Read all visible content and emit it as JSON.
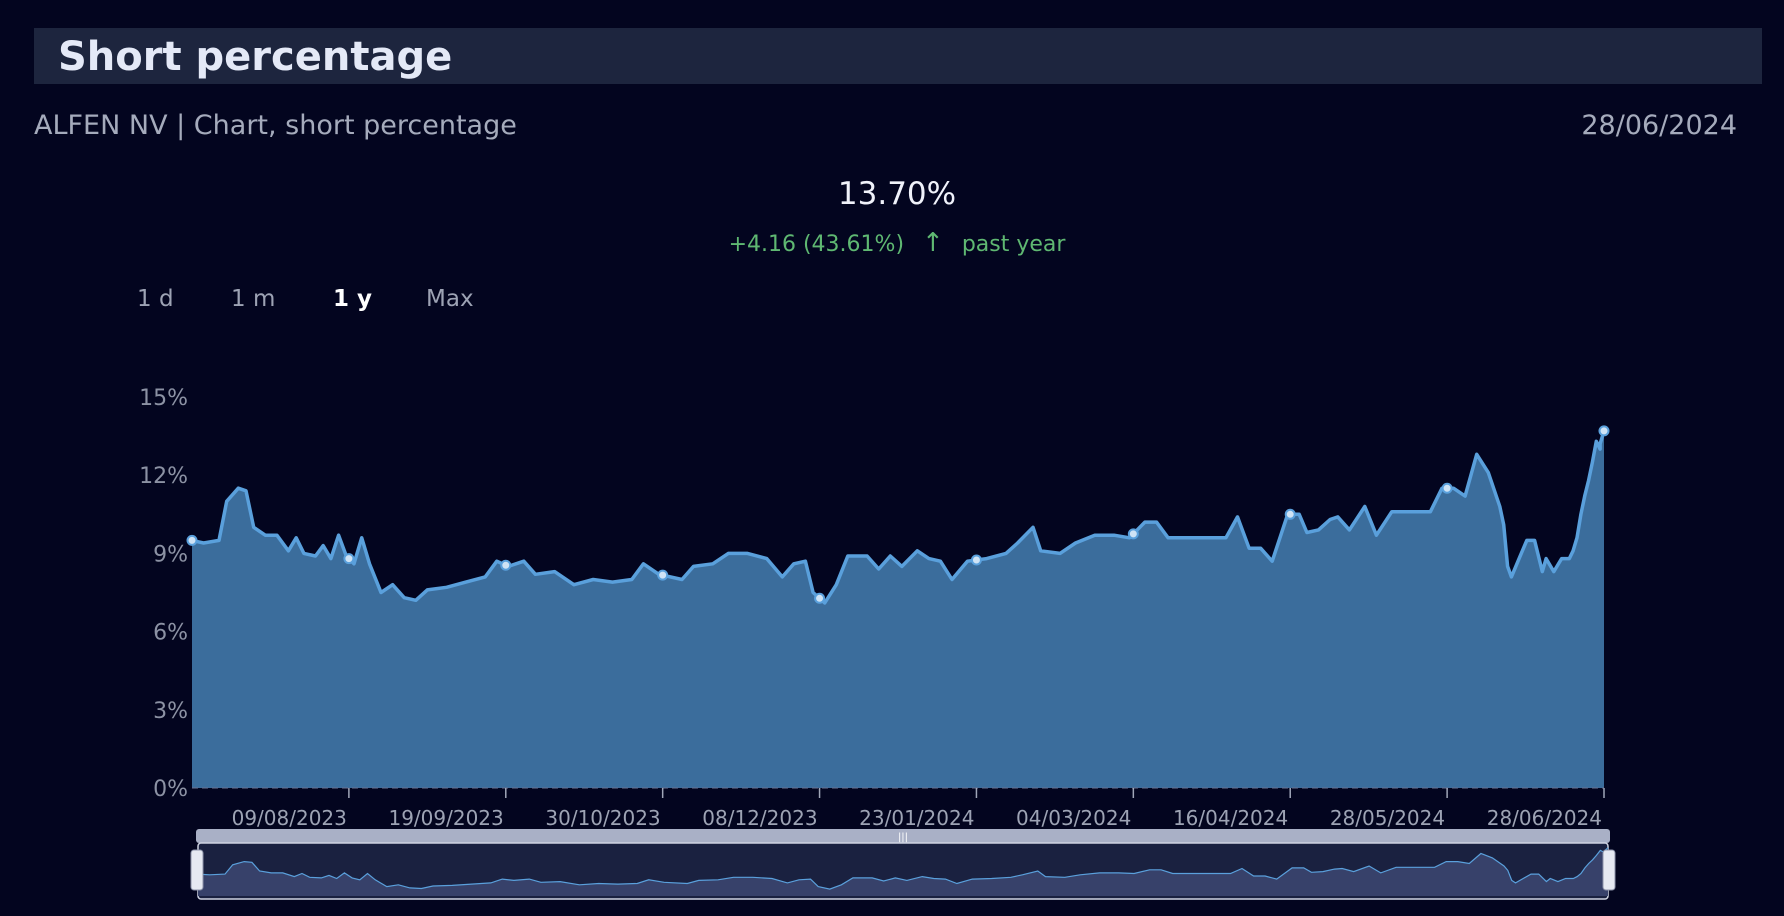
{
  "header": {
    "title": "Short percentage",
    "subtitle": "ALFEN NV | Chart, short percentage",
    "date": "28/06/2024"
  },
  "summary": {
    "value": "13.70%",
    "change": "+4.16 (43.61%)",
    "arrow": "↑",
    "period": "past year",
    "change_color": "#5fb872"
  },
  "range_buttons": [
    "1 d",
    "1 m",
    "1 y",
    "Max"
  ],
  "active_range": "1 y",
  "colors": {
    "line": "#5aa0dc",
    "fill": "#3b6d9c",
    "navigator_fill": "#37416a",
    "background": "#03051f"
  },
  "chart_data": {
    "type": "area",
    "title": "",
    "xlabel": "",
    "ylabel": "",
    "ylim": [
      0,
      15
    ],
    "yticks": [
      "0%",
      "3%",
      "6%",
      "9%",
      "12%",
      "15%"
    ],
    "xticks": [
      "09/08/2023",
      "19/09/2023",
      "30/10/2023",
      "08/12/2023",
      "23/01/2024",
      "04/03/2024",
      "16/04/2024",
      "28/05/2024",
      "28/06/2024"
    ],
    "series": [
      {
        "values": [
          [
            "2023-06-28",
            9.5
          ],
          [
            "2023-07-01",
            9.4
          ],
          [
            "2023-07-05",
            9.5
          ],
          [
            "2023-07-07",
            11.0
          ],
          [
            "2023-07-10",
            11.5
          ],
          [
            "2023-07-12",
            11.4
          ],
          [
            "2023-07-14",
            10.0
          ],
          [
            "2023-07-17",
            9.7
          ],
          [
            "2023-07-20",
            9.7
          ],
          [
            "2023-07-23",
            9.1
          ],
          [
            "2023-07-25",
            9.6
          ],
          [
            "2023-07-27",
            9.0
          ],
          [
            "2023-07-30",
            8.9
          ],
          [
            "2023-08-01",
            9.3
          ],
          [
            "2023-08-03",
            8.8
          ],
          [
            "2023-08-05",
            9.7
          ],
          [
            "2023-08-07",
            8.9
          ],
          [
            "2023-08-09",
            8.6
          ],
          [
            "2023-08-11",
            9.6
          ],
          [
            "2023-08-13",
            8.6
          ],
          [
            "2023-08-16",
            7.5
          ],
          [
            "2023-08-19",
            7.8
          ],
          [
            "2023-08-22",
            7.3
          ],
          [
            "2023-08-25",
            7.2
          ],
          [
            "2023-08-28",
            7.6
          ],
          [
            "2023-09-02",
            7.7
          ],
          [
            "2023-09-07",
            7.9
          ],
          [
            "2023-09-12",
            8.1
          ],
          [
            "2023-09-15",
            8.7
          ],
          [
            "2023-09-18",
            8.5
          ],
          [
            "2023-09-22",
            8.7
          ],
          [
            "2023-09-25",
            8.2
          ],
          [
            "2023-09-30",
            8.3
          ],
          [
            "2023-10-05",
            7.8
          ],
          [
            "2023-10-10",
            8.0
          ],
          [
            "2023-10-15",
            7.9
          ],
          [
            "2023-10-20",
            8.0
          ],
          [
            "2023-10-23",
            8.6
          ],
          [
            "2023-10-27",
            8.2
          ],
          [
            "2023-11-02",
            8.0
          ],
          [
            "2023-11-05",
            8.5
          ],
          [
            "2023-11-10",
            8.6
          ],
          [
            "2023-11-14",
            9.0
          ],
          [
            "2023-11-19",
            9.0
          ],
          [
            "2023-11-24",
            8.8
          ],
          [
            "2023-11-28",
            8.1
          ],
          [
            "2023-12-01",
            8.6
          ],
          [
            "2023-12-04",
            8.7
          ],
          [
            "2023-12-06",
            7.5
          ],
          [
            "2023-12-09",
            7.1
          ],
          [
            "2023-12-12",
            7.8
          ],
          [
            "2023-12-15",
            8.9
          ],
          [
            "2023-12-20",
            8.9
          ],
          [
            "2023-12-23",
            8.4
          ],
          [
            "2023-12-26",
            8.9
          ],
          [
            "2023-12-29",
            8.5
          ],
          [
            "2024-01-02",
            9.1
          ],
          [
            "2024-01-05",
            8.8
          ],
          [
            "2024-01-08",
            8.7
          ],
          [
            "2024-01-11",
            8.0
          ],
          [
            "2024-01-15",
            8.7
          ],
          [
            "2024-01-20",
            8.8
          ],
          [
            "2024-01-25",
            9.0
          ],
          [
            "2024-01-28",
            9.4
          ],
          [
            "2024-02-01",
            10.0
          ],
          [
            "2024-02-03",
            9.1
          ],
          [
            "2024-02-08",
            9.0
          ],
          [
            "2024-02-12",
            9.4
          ],
          [
            "2024-02-17",
            9.7
          ],
          [
            "2024-02-22",
            9.7
          ],
          [
            "2024-02-26",
            9.6
          ],
          [
            "2024-03-01",
            10.2
          ],
          [
            "2024-03-04",
            10.2
          ],
          [
            "2024-03-07",
            9.6
          ],
          [
            "2024-03-12",
            9.6
          ],
          [
            "2024-03-17",
            9.6
          ],
          [
            "2024-03-22",
            9.6
          ],
          [
            "2024-03-25",
            10.4
          ],
          [
            "2024-03-28",
            9.2
          ],
          [
            "2024-03-31",
            9.2
          ],
          [
            "2024-04-03",
            8.7
          ],
          [
            "2024-04-07",
            10.5
          ],
          [
            "2024-04-10",
            10.5
          ],
          [
            "2024-04-12",
            9.8
          ],
          [
            "2024-04-15",
            9.9
          ],
          [
            "2024-04-18",
            10.3
          ],
          [
            "2024-04-20",
            10.4
          ],
          [
            "2024-04-23",
            9.9
          ],
          [
            "2024-04-27",
            10.8
          ],
          [
            "2024-04-30",
            9.7
          ],
          [
            "2024-05-04",
            10.6
          ],
          [
            "2024-05-09",
            10.6
          ],
          [
            "2024-05-14",
            10.6
          ],
          [
            "2024-05-17",
            11.5
          ],
          [
            "2024-05-20",
            11.5
          ],
          [
            "2024-05-23",
            11.2
          ],
          [
            "2024-05-26",
            12.8
          ],
          [
            "2024-05-29",
            12.1
          ],
          [
            "2024-06-01",
            10.8
          ],
          [
            "2024-06-02",
            10.1
          ],
          [
            "2024-06-03",
            8.5
          ],
          [
            "2024-06-04",
            8.1
          ],
          [
            "2024-06-06",
            8.8
          ],
          [
            "2024-06-08",
            9.5
          ],
          [
            "2024-06-10",
            9.5
          ],
          [
            "2024-06-12",
            8.3
          ],
          [
            "2024-06-13",
            8.8
          ],
          [
            "2024-06-15",
            8.3
          ],
          [
            "2024-06-17",
            8.8
          ],
          [
            "2024-06-19",
            8.8
          ],
          [
            "2024-06-20",
            9.1
          ],
          [
            "2024-06-21",
            9.6
          ],
          [
            "2024-06-22",
            10.5
          ],
          [
            "2024-06-23",
            11.2
          ],
          [
            "2024-06-24",
            11.8
          ],
          [
            "2024-06-25",
            12.5
          ],
          [
            "2024-06-26",
            13.3
          ],
          [
            "2024-06-27",
            13.0
          ],
          [
            "2024-06-27",
            13.2
          ],
          [
            "2024-06-28",
            13.7
          ]
        ]
      }
    ],
    "legend": "none",
    "grid": false
  }
}
